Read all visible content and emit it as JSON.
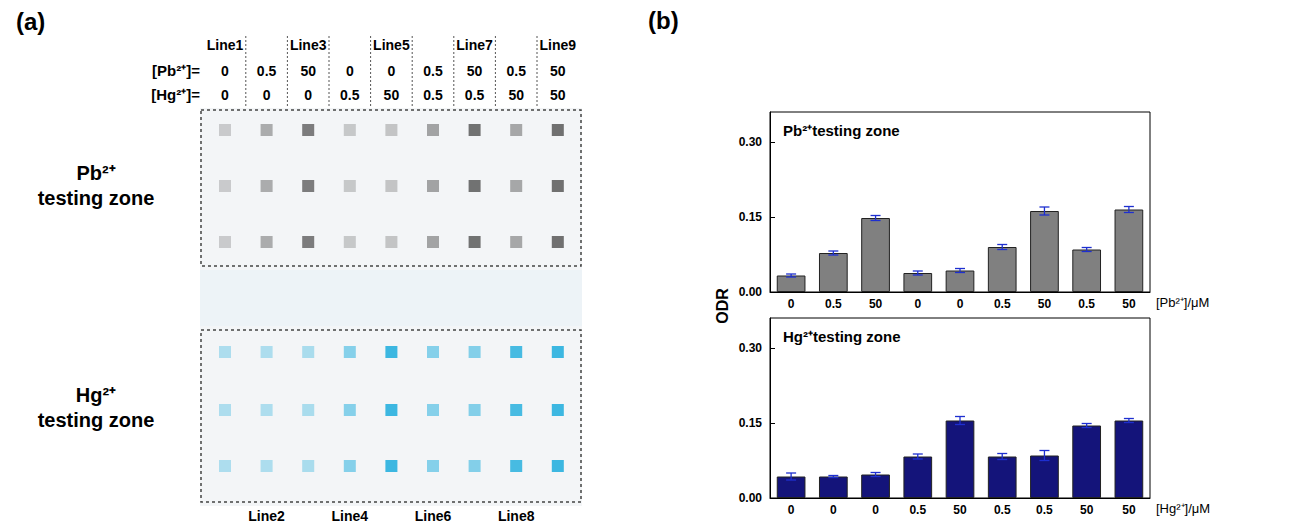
{
  "figure": {
    "panel_a": {
      "letter": "(a)",
      "row_labels": [
        "[Pb²⁺]=",
        "[Hg²⁺]="
      ],
      "lines": [
        "Line1",
        "Line2",
        "Line3",
        "Line4",
        "Line5",
        "Line6",
        "Line7",
        "Line8",
        "Line9"
      ],
      "pb_conc": [
        0,
        0.5,
        50,
        0,
        0,
        0.5,
        50,
        0.5,
        50
      ],
      "hg_conc": [
        0,
        0,
        0,
        0.5,
        50,
        0.5,
        0.5,
        50,
        50
      ],
      "zones": [
        "Pb²⁺ testing zone",
        "Hg²⁺ testing zone"
      ]
    },
    "panel_b": {
      "letter": "(b)",
      "ylabel": "ODR"
    }
  },
  "chart_data": [
    {
      "type": "bar",
      "title": "Pb²⁺testing zone",
      "xlabel": "[Pb²⁺]/μM",
      "categories": [
        "0",
        "0.5",
        "50",
        "0",
        "0",
        "0.5",
        "50",
        "0.5",
        "50"
      ],
      "values": [
        0.033,
        0.078,
        0.148,
        0.038,
        0.043,
        0.09,
        0.162,
        0.085,
        0.165
      ],
      "errors": [
        0.003,
        0.004,
        0.005,
        0.004,
        0.004,
        0.005,
        0.008,
        0.004,
        0.006
      ],
      "color": "#808080",
      "ylim": [
        0,
        0.36
      ],
      "yticks": [
        {
          "value": 0,
          "label": "0.00"
        },
        {
          "value": 0.15,
          "label": "0.15"
        },
        {
          "value": 0.3,
          "label": "0.30"
        }
      ],
      "grid": false
    },
    {
      "type": "bar",
      "title": "Hg²⁺testing zone",
      "xlabel": "[Hg²⁺]/μM",
      "categories": [
        "0",
        "0",
        "0",
        "0.5",
        "50",
        "0.5",
        "0.5",
        "50",
        "50"
      ],
      "values": [
        0.043,
        0.043,
        0.047,
        0.083,
        0.155,
        0.083,
        0.085,
        0.145,
        0.155
      ],
      "errors": [
        0.007,
        0.002,
        0.004,
        0.005,
        0.008,
        0.006,
        0.01,
        0.004,
        0.004
      ],
      "color": "#14147a",
      "ylim": [
        0,
        0.36
      ],
      "yticks": [
        {
          "value": 0,
          "label": "0.00"
        },
        {
          "value": 0.15,
          "label": "0.15"
        },
        {
          "value": 0.3,
          "label": "0.30"
        }
      ],
      "grid": false
    }
  ]
}
